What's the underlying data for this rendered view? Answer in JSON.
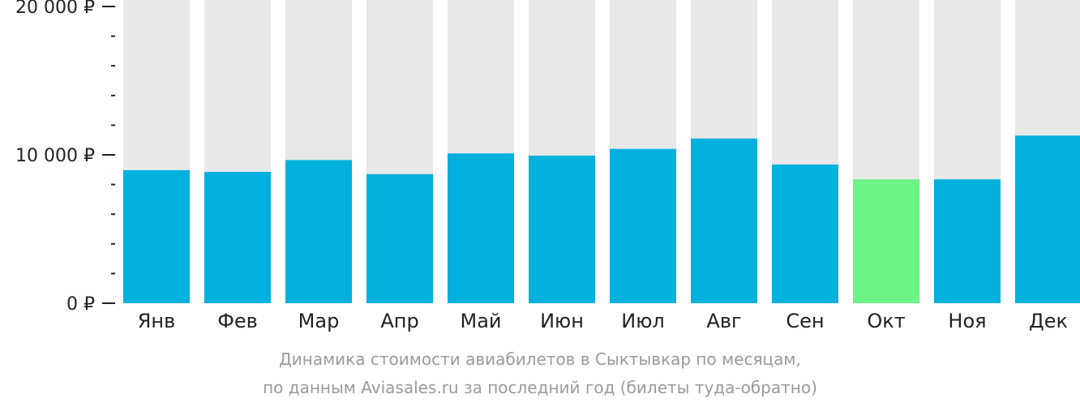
{
  "chart_data": {
    "type": "bar",
    "categories": [
      "Янв",
      "Фев",
      "Мар",
      "Апр",
      "Май",
      "Июн",
      "Июл",
      "Авг",
      "Сен",
      "Окт",
      "Ноя",
      "Дек"
    ],
    "values": [
      8970,
      8850,
      9650,
      8700,
      10100,
      9950,
      10400,
      11100,
      9350,
      8350,
      8350,
      11300
    ],
    "highlight_index": 9,
    "ylim": [
      0,
      20000
    ],
    "y_major_ticks": [
      0,
      10000,
      20000
    ],
    "y_tick_labels": [
      "0 ₽",
      "10 000 ₽",
      "20 000 ₽"
    ],
    "y_minor_step": 2000,
    "grid": false,
    "title": "",
    "xlabel": "",
    "ylabel": "",
    "colors": {
      "bar": "#00b0dd",
      "highlight": "#6cf386",
      "track": "#e8e8e8",
      "axis_text": "#222222",
      "tick": "#222222"
    }
  },
  "caption": {
    "line1": "Динамика стоимости авиабилетов в Сыктывкар по месяцам,",
    "line2": "по данным Aviasales.ru за последний год (билеты туда-обратно)"
  }
}
